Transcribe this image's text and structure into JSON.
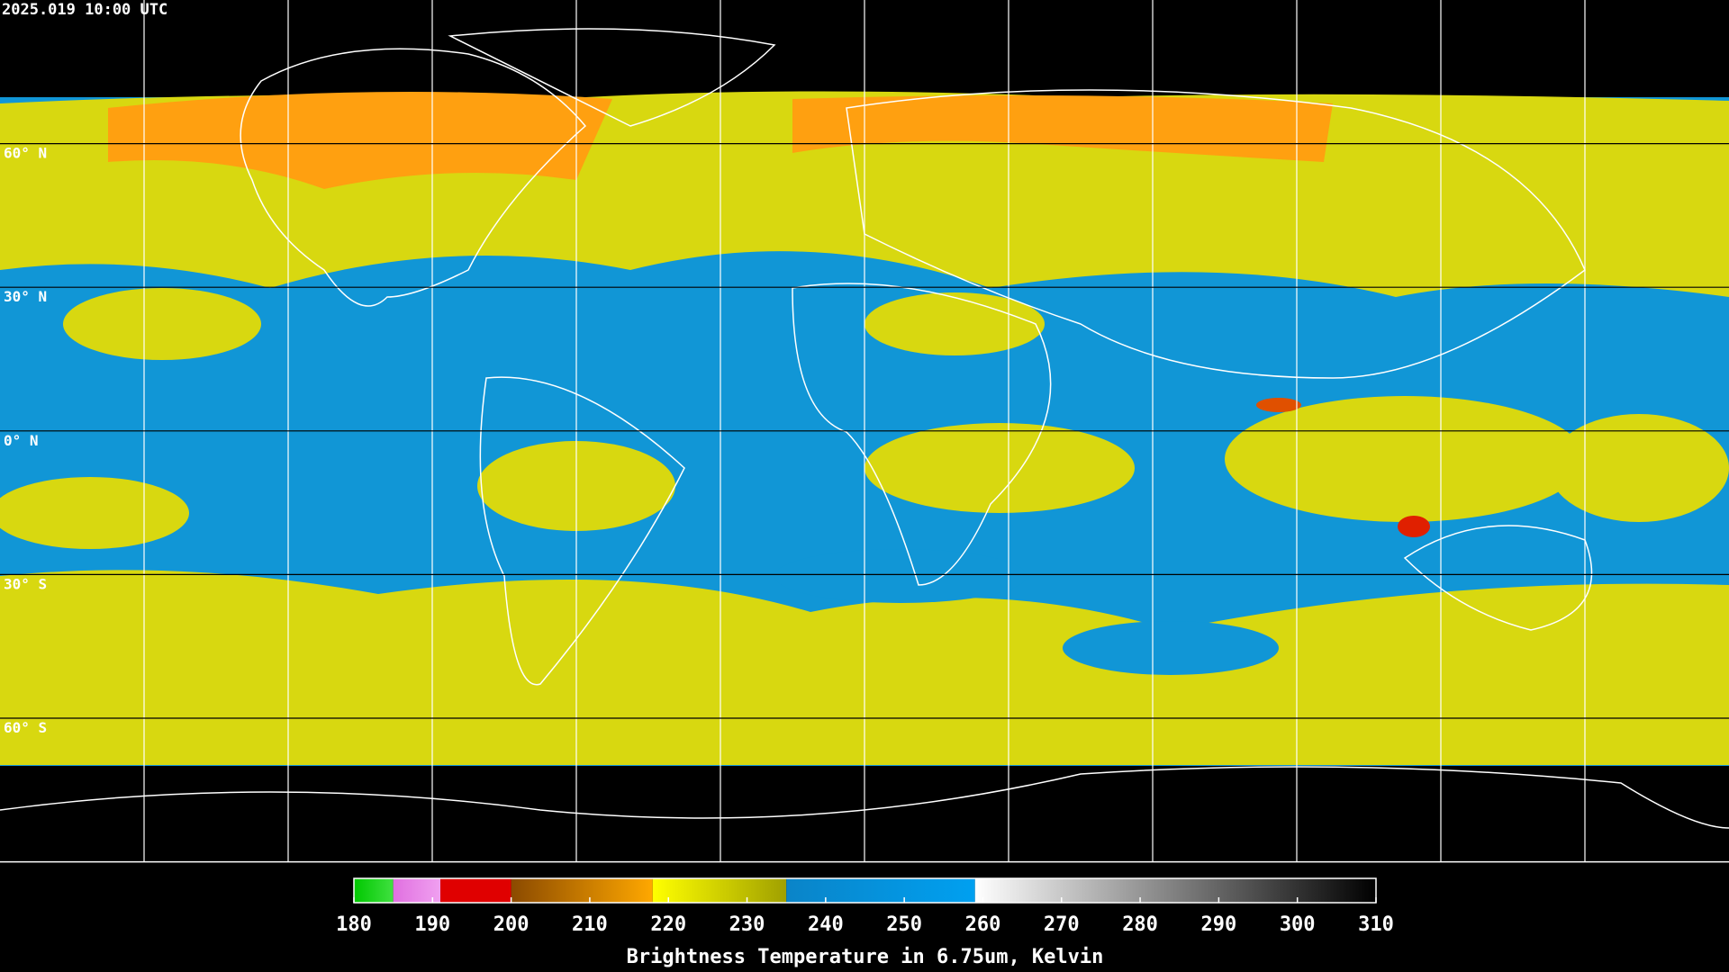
{
  "timestamp": "2025.019 10:00 UTC",
  "lat_lines": [
    {
      "value": 60,
      "label": "60° N"
    },
    {
      "value": 30,
      "label": "30° N"
    },
    {
      "value": 0,
      "label": "0° N"
    },
    {
      "value": -30,
      "label": "30° S"
    },
    {
      "value": -60,
      "label": "60° S"
    }
  ],
  "colorbar": {
    "label": "Brightness Temperature in 6.75um, Kelvin",
    "lim": [
      180,
      310
    ],
    "ticks": [
      180,
      190,
      200,
      210,
      220,
      230,
      240,
      250,
      260,
      270,
      280,
      290,
      300,
      310
    ],
    "segments": [
      {
        "range": [
          180,
          185
        ],
        "colors": [
          "#00c800",
          "#40e040"
        ]
      },
      {
        "range": [
          185,
          191
        ],
        "colors": [
          "#e070e0",
          "#f0a0f0"
        ]
      },
      {
        "range": [
          191,
          200
        ],
        "colors": [
          "#e00000",
          "#e00000"
        ]
      },
      {
        "range": [
          200,
          218
        ],
        "colors": [
          "#8b4a00",
          "#ffa800"
        ]
      },
      {
        "range": [
          218,
          235
        ],
        "colors": [
          "#ffff00",
          "#a0a000"
        ]
      },
      {
        "range": [
          235,
          259
        ],
        "colors": [
          "#0a84c8",
          "#00a0f0"
        ]
      },
      {
        "range": [
          259,
          310
        ],
        "colors": [
          "#ffffff",
          "#000000"
        ]
      }
    ]
  }
}
